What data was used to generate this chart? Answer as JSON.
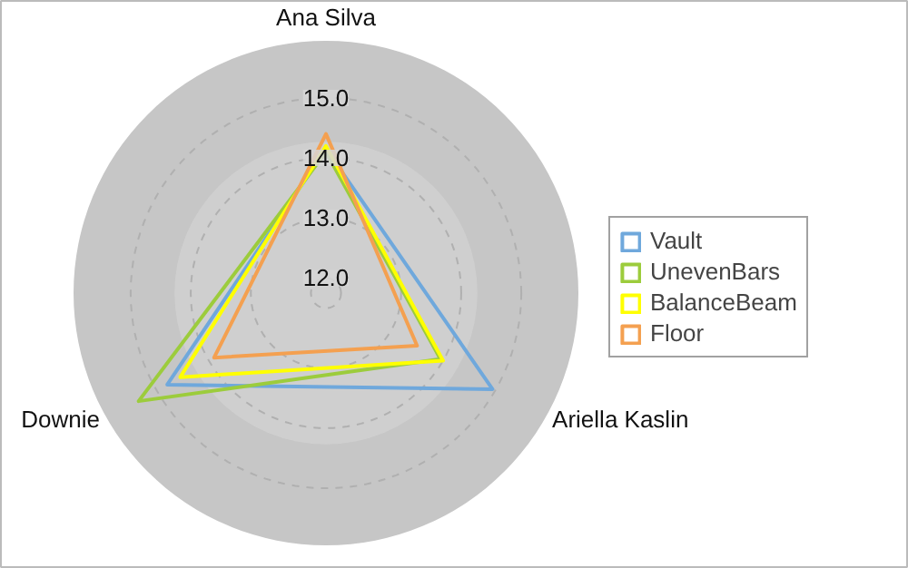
{
  "chart_data": {
    "type": "radar",
    "categories": [
      "Ana Silva",
      "Ariella Kaslin",
      "Downie"
    ],
    "ylim": [
      11.75,
      15.95
    ],
    "yticks": [
      {
        "value": 12,
        "label": "12.0"
      },
      {
        "value": 13,
        "label": "13.0"
      },
      {
        "value": 14,
        "label": "14.0"
      },
      {
        "value": 15,
        "label": "15.0"
      }
    ],
    "grid": true,
    "legend": "right",
    "marker": "none",
    "line_style": "solid",
    "series": [
      {
        "name": "Vault",
        "color": "#6fa8dc",
        "values": [
          14.15,
          14.95,
          14.8
        ]
      },
      {
        "name": "UnevenBars",
        "color": "#9ccc3c",
        "values": [
          14.1,
          13.95,
          15.35
        ]
      },
      {
        "name": "BalanceBeam",
        "color": "#ffff00",
        "values": [
          14.2,
          14.0,
          14.55
        ]
      },
      {
        "name": "Floor",
        "color": "#f4a050",
        "values": [
          14.4,
          13.5,
          13.9
        ]
      }
    ]
  }
}
